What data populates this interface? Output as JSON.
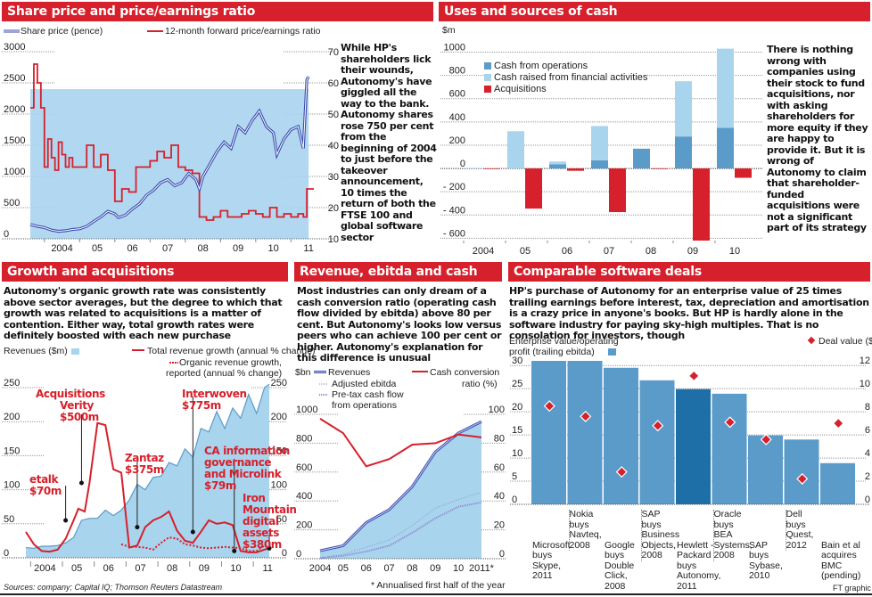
{
  "colors": {
    "red": "#d6202b",
    "lightblue": "#a9d4ee",
    "midblue": "#5b9bc9",
    "darkblue": "#1e6fa8",
    "navy": "#3a4bb0"
  },
  "panels": {
    "share": {
      "title": "Share price and price/earnings ratio",
      "legend_share": "Share price (pence)",
      "legend_pe": "12-month forward price/earnings ratio",
      "text": "While HP's shareholders lick their wounds, Autonomy's have giggled all the way to the bank. Autonomy shares rose 750 per cent from the beginning of 2004 to just before the takeover announcement, 10 times the return of both the FTSE 100 and global software sector"
    },
    "cash": {
      "title": "Uses and sources of cash",
      "unit": "$m",
      "legend": [
        "Cash from operations",
        "Cash raised from financial activities",
        "Acquisitions"
      ],
      "text": "There is nothing wrong with companies using their stock to fund acquisitions, nor with asking shareholders for more equity if they are happy to provide it. But it is wrong of Autonomy to claim that shareholder-funded acquisitions were not a significant part of its strategy"
    },
    "growth": {
      "title": "Growth and acquisitions",
      "text": "Autonomy's organic growth rate was consistently above sector averages, but the degree to which that growth was related to acquisitions is a matter of contention. Either way, total growth rates were definitely boosted with each new purchase",
      "legend_rev": "Revenues ($m)",
      "legend_total": "Total revenue growth (annual % change)",
      "legend_organic_1": "Organic revenue growth,",
      "legend_organic_2": "reported (annual % change)",
      "annotations": {
        "acq1": "Acquisitions",
        "acq2": "Verity",
        "acq3": "$500m",
        "etalk1": "etalk",
        "etalk2": "$70m",
        "zantaz1": "Zantaz",
        "zantaz2": "$375m",
        "inter1": "Interwoven",
        "inter2": "$775m",
        "ca1": "CA information",
        "ca2": "governance",
        "ca3": "and Microlink",
        "ca4": "$79m",
        "iron1": "Iron",
        "iron2": "Mountain",
        "iron3": "digital",
        "iron4": "assets",
        "iron5": "$380m"
      }
    },
    "revenue": {
      "title": "Revenue, ebitda and cash conversion",
      "text": "Most industries can only dream of a cash conversion ratio (operating cash flow divided by ebitda) above 80 per cent. But Autonomy's looks low versus peers who can achieve 100 per cent or higher. Autonomy's explanation for this difference is unusual",
      "unit": "$bn",
      "legend_rev": "Revenues",
      "legend_ebitda": "Adjusted ebitda",
      "legend_cash_1": "Pre-tax cash flow",
      "legend_cash_2": "from operations",
      "legend_ccr_1": "Cash conversion",
      "legend_ccr_2": "ratio (%)",
      "footnote": "* Annualised first half of the year"
    },
    "deals": {
      "title": "Comparable software deals",
      "text": "HP's purchase of Autonomy for an enterprise value of 25 times trailing earnings before interest, tax, depreciation and amortisation is a crazy price in anyone's books. But HP is hardly alone in the software industry for paying sky-high multiples. That is no consolation for investors, though",
      "legend_ev_1": "Enterprise value/operating",
      "legend_ev_2": "profit (trailing ebitda)",
      "legend_deal": "Deal value ($bn)"
    }
  },
  "footer": {
    "sources": "Sources: company; Capital IQ; Thomson Reuters Datastream",
    "credit": "FT graphic"
  },
  "chart_data": [
    {
      "type": "line",
      "title": "Share price and price/earnings ratio",
      "x_ticks": [
        "2004",
        "05",
        "06",
        "07",
        "08",
        "09",
        "10",
        "11"
      ],
      "y_left_ticks": [
        "0",
        "500",
        "1000",
        "1500",
        "2000",
        "2500",
        "3000"
      ],
      "y_right_ticks": [
        "10",
        "20",
        "30",
        "40",
        "50",
        "60",
        "70"
      ],
      "ylim_left": [
        0,
        3000
      ],
      "ylim_right": [
        10,
        70
      ],
      "xlim": [
        2003.6,
        2011.75
      ],
      "series": [
        {
          "name": "Share price (pence)",
          "axis": "left",
          "x": [
            2003.6,
            2003.8,
            2004.0,
            2004.2,
            2004.4,
            2004.6,
            2004.8,
            2005.0,
            2005.2,
            2005.4,
            2005.6,
            2005.8,
            2006.0,
            2006.1,
            2006.3,
            2006.5,
            2006.7,
            2006.9,
            2007.1,
            2007.3,
            2007.5,
            2007.7,
            2007.9,
            2008.1,
            2008.3,
            2008.4,
            2008.5,
            2008.7,
            2008.9,
            2009.1,
            2009.3,
            2009.5,
            2009.7,
            2009.9,
            2010.1,
            2010.3,
            2010.5,
            2010.6,
            2010.8,
            2011.0,
            2011.2,
            2011.35,
            2011.45,
            2011.5
          ],
          "y": [
            230,
            200,
            180,
            140,
            120,
            130,
            150,
            160,
            200,
            280,
            350,
            440,
            400,
            340,
            380,
            480,
            560,
            700,
            780,
            900,
            950,
            850,
            900,
            1050,
            950,
            800,
            1000,
            1200,
            1400,
            1550,
            1450,
            1800,
            1700,
            1900,
            2050,
            1800,
            1700,
            1350,
            1600,
            1750,
            1800,
            1450,
            2550,
            2600
          ]
        },
        {
          "name": "12-month forward price/earnings ratio",
          "axis": "right",
          "x": [
            2003.6,
            2003.7,
            2003.8,
            2003.9,
            2004.0,
            2004.1,
            2004.2,
            2004.3,
            2004.4,
            2004.5,
            2004.6,
            2004.7,
            2004.8,
            2005.0,
            2005.2,
            2005.4,
            2005.6,
            2005.8,
            2006.0,
            2006.2,
            2006.4,
            2006.6,
            2006.8,
            2007.0,
            2007.2,
            2007.4,
            2007.6,
            2007.8,
            2008.0,
            2008.2,
            2008.4,
            2008.6,
            2008.8,
            2009.0,
            2009.2,
            2009.4,
            2009.6,
            2009.8,
            2010.0,
            2010.2,
            2010.4,
            2010.6,
            2010.8,
            2011.0,
            2011.2,
            2011.35,
            2011.45
          ],
          "y": [
            52,
            66,
            60,
            52,
            33,
            42,
            36,
            32,
            41,
            37,
            33,
            36,
            33,
            33,
            40,
            33,
            37,
            32,
            22,
            26,
            25,
            33,
            33,
            35,
            38,
            36,
            40,
            33,
            32,
            31,
            17,
            16,
            17,
            19,
            17,
            17,
            18,
            19,
            18,
            17,
            20,
            17,
            18,
            17,
            18,
            17,
            26
          ]
        },
        {
          "name": "Share price fill",
          "axis": "left",
          "note": "area"
        }
      ]
    },
    {
      "type": "bar",
      "title": "Uses and sources of cash",
      "ylabel": "$m",
      "categories": [
        "2004",
        "05",
        "06",
        "07",
        "08",
        "09",
        "10"
      ],
      "y_ticks": [
        "-600",
        "-400",
        "-200",
        "0",
        "200",
        "400",
        "600",
        "800",
        "1000"
      ],
      "ylim": [
        -620,
        1050
      ],
      "series": [
        {
          "name": "Cash from operations",
          "values": [
            0,
            0,
            35,
            70,
            170,
            275,
            350
          ]
        },
        {
          "name": "Cash raised from financial activities",
          "values": [
            5,
            320,
            25,
            295,
            0,
            475,
            680
          ]
        },
        {
          "name": "Acquisitions",
          "values": [
            -5,
            -345,
            -20,
            -375,
            -5,
            -620,
            -80
          ]
        }
      ]
    },
    {
      "type": "area",
      "title": "Growth and acquisitions",
      "x_ticks": [
        "2004",
        "05",
        "06",
        "07",
        "08",
        "09",
        "10",
        "11"
      ],
      "y_ticks": [
        "0",
        "50",
        "100",
        "150",
        "200",
        "250"
      ],
      "ylim": [
        0,
        250
      ],
      "xlim": [
        2003.75,
        2011.4
      ],
      "series": [
        {
          "name": "Revenues ($m)",
          "x": [
            2003.75,
            2004.0,
            2004.25,
            2004.5,
            2004.75,
            2005.0,
            2005.25,
            2005.5,
            2005.75,
            2006.0,
            2006.25,
            2006.5,
            2006.75,
            2007.0,
            2007.25,
            2007.5,
            2007.75,
            2008.0,
            2008.25,
            2008.5,
            2008.75,
            2009.0,
            2009.25,
            2009.5,
            2009.75,
            2010.0,
            2010.25,
            2010.5,
            2010.75,
            2011.0,
            2011.25,
            2011.4
          ],
          "values": [
            15,
            14,
            17,
            17,
            18,
            22,
            30,
            55,
            58,
            58,
            70,
            62,
            70,
            85,
            108,
            100,
            118,
            120,
            140,
            135,
            160,
            148,
            190,
            185,
            215,
            190,
            220,
            205,
            240,
            212,
            250,
            255
          ]
        },
        {
          "name": "Total revenue growth (annual % change)",
          "x": [
            2003.75,
            2004.0,
            2004.25,
            2004.5,
            2004.75,
            2005.0,
            2005.25,
            2005.4,
            2005.6,
            2005.75,
            2006.0,
            2006.25,
            2006.5,
            2006.75,
            2007.0,
            2007.25,
            2007.5,
            2007.75,
            2008.0,
            2008.25,
            2008.5,
            2008.75,
            2009.0,
            2009.25,
            2009.5,
            2009.75,
            2010.0,
            2010.25,
            2010.5,
            2010.75,
            2011.0,
            2011.25,
            2011.4
          ],
          "values": [
            38,
            20,
            10,
            9,
            12,
            28,
            55,
            72,
            68,
            110,
            198,
            195,
            130,
            125,
            15,
            18,
            45,
            55,
            60,
            68,
            40,
            25,
            22,
            38,
            55,
            50,
            52,
            48,
            10,
            8,
            8,
            12,
            14
          ]
        },
        {
          "name": "Organic revenue growth, reported (annual % change)",
          "x": [
            2006.75,
            2007.0,
            2007.25,
            2007.5,
            2007.75,
            2008.0,
            2008.25,
            2008.5,
            2008.75,
            2009.0,
            2009.25,
            2009.5,
            2009.75,
            2010.0,
            2010.25,
            2010.5,
            2010.75,
            2011.0,
            2011.25,
            2011.4
          ],
          "values": [
            20,
            16,
            16,
            15,
            12,
            22,
            30,
            28,
            20,
            18,
            15,
            14,
            15,
            16,
            15,
            14,
            10,
            10,
            18,
            14
          ]
        }
      ],
      "acquisitions": [
        {
          "label": "etalk $70m",
          "x": 2005.0,
          "y": 55
        },
        {
          "label": "Verity $500m",
          "x": 2005.5,
          "y": 110
        },
        {
          "label": "Zantaz $375m",
          "x": 2007.25,
          "y": 45
        },
        {
          "label": "Interwoven $775m",
          "x": 2009.0,
          "y": 38
        },
        {
          "label": "CA information governance and Microlink $79m",
          "x": 2010.3,
          "y": 10
        },
        {
          "label": "Iron Mountain digital assets $380m",
          "x": 2011.4,
          "y": 14
        }
      ]
    },
    {
      "type": "line",
      "title": "Revenue, ebitda and cash conversion",
      "categories": [
        "2004",
        "05",
        "06",
        "07",
        "08",
        "09",
        "10",
        "2011*"
      ],
      "y_left_ticks": [
        "0",
        "200",
        "400",
        "600",
        "800",
        "1000"
      ],
      "y_right_ticks": [
        "0",
        "20",
        "40",
        "60",
        "80",
        "100"
      ],
      "ylim_left": [
        0,
        1000
      ],
      "ylim_right": [
        0,
        100
      ],
      "series": [
        {
          "name": "Revenues",
          "axis": "left",
          "values": [
            55,
            90,
            250,
            340,
            500,
            740,
            870,
            950
          ]
        },
        {
          "name": "Adjusted ebitda",
          "axis": "left",
          "values": [
            5,
            30,
            80,
            130,
            230,
            350,
            410,
            460
          ]
        },
        {
          "name": "Pre-tax cash flow from operations",
          "axis": "left",
          "values": [
            5,
            20,
            50,
            90,
            180,
            280,
            360,
            390
          ]
        },
        {
          "name": "Cash conversion ratio (%)",
          "axis": "right",
          "values": [
            97,
            87,
            64,
            69,
            79,
            80,
            86,
            84
          ]
        }
      ]
    },
    {
      "type": "bar",
      "title": "Comparable software deals",
      "categories": [
        "Microsoft buys Skype, 2011",
        "Nokia buys Navteq, 2008",
        "Google buys Double Click, 2008",
        "SAP buys Business Objects, 2008",
        "Hewlett-Packard buys Autonomy, 2011",
        "Oracle buys BEA Systems, 2008",
        "SAP buys Sybase, 2010",
        "Dell buys Quest, 2012",
        "Bain et al acquires BMC (pending)"
      ],
      "category_lines": [
        [
          "",
          "",
          "",
          "Microsoft",
          "buys",
          "Skype,",
          "2011"
        ],
        [
          "Nokia",
          "buys",
          "Navteq,",
          "2008"
        ],
        [
          "",
          "",
          "",
          "Google",
          "buys",
          "Double",
          "Click,",
          "2008"
        ],
        [
          "SAP",
          "buys",
          "Business",
          "Objects,",
          "2008"
        ],
        [
          "",
          "",
          "",
          "Hewlett -",
          "Packard",
          "buys",
          "Autonomy,",
          "2011"
        ],
        [
          "Oracle",
          "buys",
          "BEA",
          "Systems,",
          "2008"
        ],
        [
          "",
          "",
          "",
          "SAP",
          "buys",
          "Sybase,",
          "2010"
        ],
        [
          "Dell",
          "buys",
          "Quest,",
          "2012"
        ],
        [
          "",
          "",
          "",
          "Bain et al",
          "acquires",
          "BMC",
          "(pending)"
        ]
      ],
      "y_left_ticks": [
        "0",
        "5",
        "10",
        "15",
        "20",
        "25",
        "30"
      ],
      "y_right_ticks": [
        "0",
        "2",
        "4",
        "6",
        "8",
        "10",
        "12"
      ],
      "ylim_left": [
        0,
        31
      ],
      "ylim_right": [
        0,
        12.4
      ],
      "series": [
        {
          "name": "Enterprise value/operating profit (trailing ebitda)",
          "axis": "left",
          "values": [
            31,
            31,
            29.5,
            26.8,
            24.9,
            23.9,
            14.9,
            14,
            8.9
          ]
        },
        {
          "name": "Deal value ($bn)",
          "axis": "right",
          "values": [
            8.5,
            7.6,
            2.8,
            6.8,
            11.1,
            7.1,
            5.6,
            2.2,
            7.0
          ]
        }
      ]
    }
  ]
}
